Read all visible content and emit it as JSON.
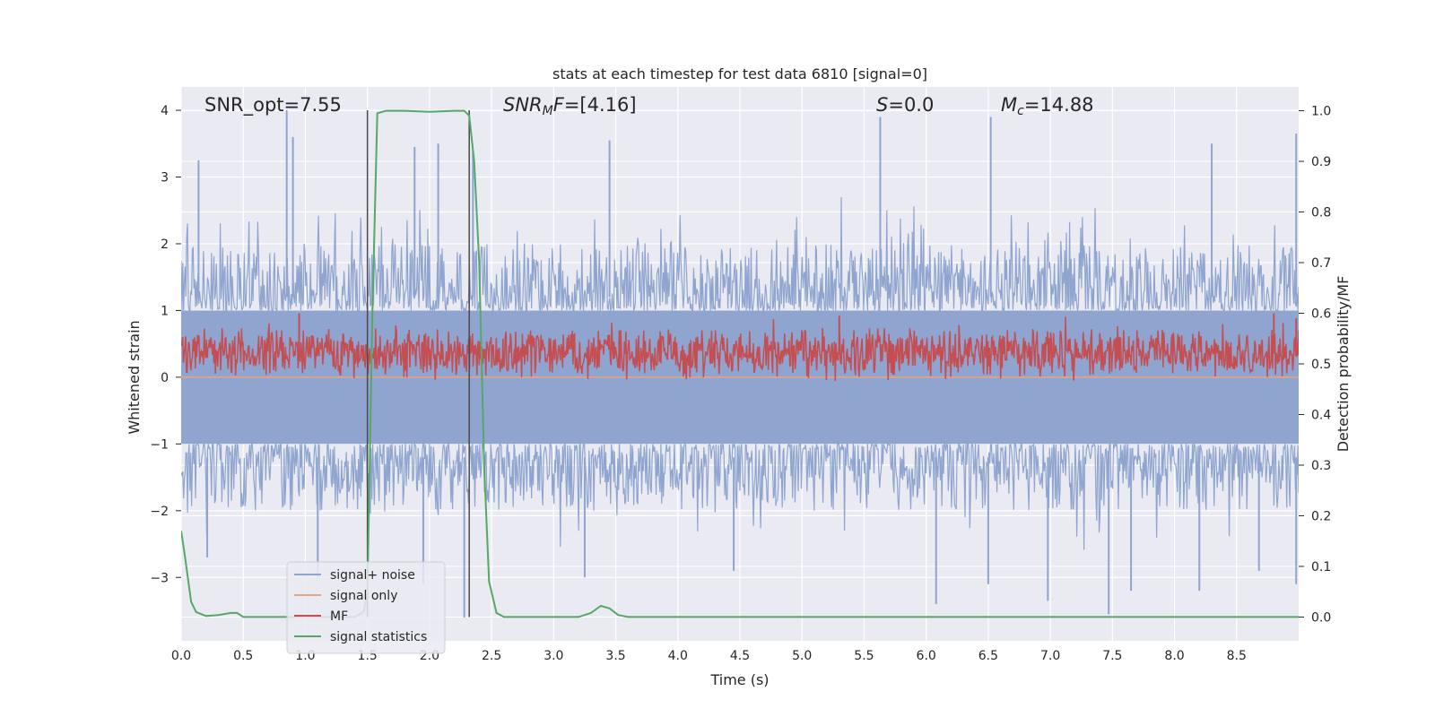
{
  "chart_data": {
    "type": "line",
    "title": "stats at each timestep for test data 6810 [signal=0]",
    "xlabel": "Time (s)",
    "ylabel": "Whitened strain",
    "ylabel_right": "Detection probability/MF",
    "xlim": [
      0,
      9.0
    ],
    "ylim": [
      -3.95,
      4.35
    ],
    "ylim_right": [
      -0.047,
      1.047
    ],
    "x_ticks": [
      0.0,
      0.5,
      1.0,
      1.5,
      2.0,
      2.5,
      3.0,
      3.5,
      4.0,
      4.5,
      5.0,
      5.5,
      6.0,
      6.5,
      7.0,
      7.5,
      8.0,
      8.5
    ],
    "x_tick_labels": [
      "0.0",
      "0.5",
      "1.0",
      "1.5",
      "2.0",
      "2.5",
      "3.0",
      "3.5",
      "4.0",
      "4.5",
      "5.0",
      "5.5",
      "6.0",
      "6.5",
      "7.0",
      "7.5",
      "8.0",
      "8.5"
    ],
    "y_ticks": [
      -3,
      -2,
      -1,
      0,
      1,
      2,
      3,
      4
    ],
    "y_tick_labels": [
      "−3",
      "−2",
      "−1",
      "0",
      "1",
      "2",
      "3",
      "4"
    ],
    "y_ticks_right": [
      0.0,
      0.1,
      0.2,
      0.3,
      0.4,
      0.5,
      0.6,
      0.7,
      0.8,
      0.9,
      1.0
    ],
    "y_tick_labels_right": [
      "0.0",
      "0.1",
      "0.2",
      "0.3",
      "0.4",
      "0.5",
      "0.6",
      "0.7",
      "0.8",
      "0.9",
      "1.0"
    ],
    "grid": true,
    "legend_position": "lower-left",
    "annotations": [
      {
        "label": "snr-opt",
        "parts": [
          {
            "text": "SNR_opt=7.55"
          }
        ]
      },
      {
        "label": "snr-mf",
        "parts": [
          {
            "text": "SNR",
            "italic": true
          },
          {
            "text": "M",
            "italic": true,
            "sub": true
          },
          {
            "text": "F",
            "italic": true
          },
          {
            "text": "=[4.16]"
          }
        ]
      },
      {
        "label": "s-value",
        "parts": [
          {
            "text": "S",
            "italic": true
          },
          {
            "text": "=0.0"
          }
        ]
      },
      {
        "label": "chirp-mass",
        "parts": [
          {
            "text": "M",
            "italic": true
          },
          {
            "text": "c",
            "italic": true,
            "sub": true
          },
          {
            "text": "=14.88"
          }
        ]
      }
    ],
    "vertical_markers": [
      1.5,
      2.32
    ],
    "series": [
      {
        "name": "signal+ noise",
        "axis": "left",
        "color": "#8fa5cf",
        "render": "band",
        "x_range": [
          0,
          9.0
        ],
        "typical_upper": [
          1.0,
          2.0
        ],
        "typical_lower": [
          -1.0,
          -2.0
        ],
        "peaks": [
          [
            0.14,
            3.25
          ],
          [
            0.85,
            4.0
          ],
          [
            0.9,
            3.6
          ],
          [
            1.88,
            3.45
          ],
          [
            2.07,
            3.5
          ],
          [
            2.35,
            3.4
          ],
          [
            3.45,
            3.55
          ],
          [
            5.63,
            3.9
          ],
          [
            6.52,
            3.9
          ],
          [
            8.3,
            3.5
          ],
          [
            8.98,
            3.65
          ]
        ],
        "troughs": [
          [
            0.21,
            -2.7
          ],
          [
            1.1,
            -3.0
          ],
          [
            1.95,
            -3.1
          ],
          [
            2.28,
            -3.6
          ],
          [
            3.25,
            -3.0
          ],
          [
            4.45,
            -2.9
          ],
          [
            6.08,
            -3.4
          ],
          [
            6.5,
            -3.1
          ],
          [
            6.98,
            -3.35
          ],
          [
            7.47,
            -3.55
          ],
          [
            7.65,
            -3.2
          ],
          [
            8.2,
            -3.2
          ],
          [
            8.68,
            -2.9
          ],
          [
            8.98,
            -3.1
          ]
        ]
      },
      {
        "name": "signal only",
        "axis": "left",
        "color": "#e8a582",
        "x": [
          0,
          9.0
        ],
        "y": [
          0.0,
          0.0
        ]
      },
      {
        "name": "MF",
        "axis": "right",
        "color": "#c44e52",
        "render": "noisy",
        "x_range": [
          0,
          9.0
        ],
        "baseline": 0.52,
        "spread": 0.04,
        "peaks": [
          [
            0.95,
            0.6
          ],
          [
            5.3,
            0.595
          ],
          [
            8.8,
            0.6
          ],
          [
            8.98,
            0.59
          ]
        ]
      },
      {
        "name": "signal statistics",
        "axis": "right",
        "color": "#55a868",
        "x": [
          0.0,
          0.03,
          0.08,
          0.12,
          0.2,
          0.3,
          0.4,
          0.45,
          0.5,
          0.55,
          0.6,
          1.4,
          1.47,
          1.5,
          1.54,
          1.58,
          1.65,
          1.8,
          2.0,
          2.2,
          2.28,
          2.32,
          2.36,
          2.4,
          2.44,
          2.48,
          2.54,
          2.6,
          2.8,
          3.0,
          3.2,
          3.3,
          3.38,
          3.45,
          3.52,
          3.6,
          3.7,
          4.0,
          9.0
        ],
        "y": [
          0.17,
          0.12,
          0.03,
          0.01,
          0.002,
          0.004,
          0.008,
          0.008,
          0.0,
          0.0,
          0.0,
          0.0,
          0.01,
          0.05,
          0.6,
          0.995,
          1.0,
          1.0,
          0.998,
          1.0,
          1.0,
          0.99,
          0.9,
          0.7,
          0.3,
          0.07,
          0.008,
          0.0,
          0.0,
          0.0,
          0.0,
          0.008,
          0.022,
          0.017,
          0.004,
          0.0,
          0.0,
          0.0,
          0.0
        ]
      }
    ]
  }
}
